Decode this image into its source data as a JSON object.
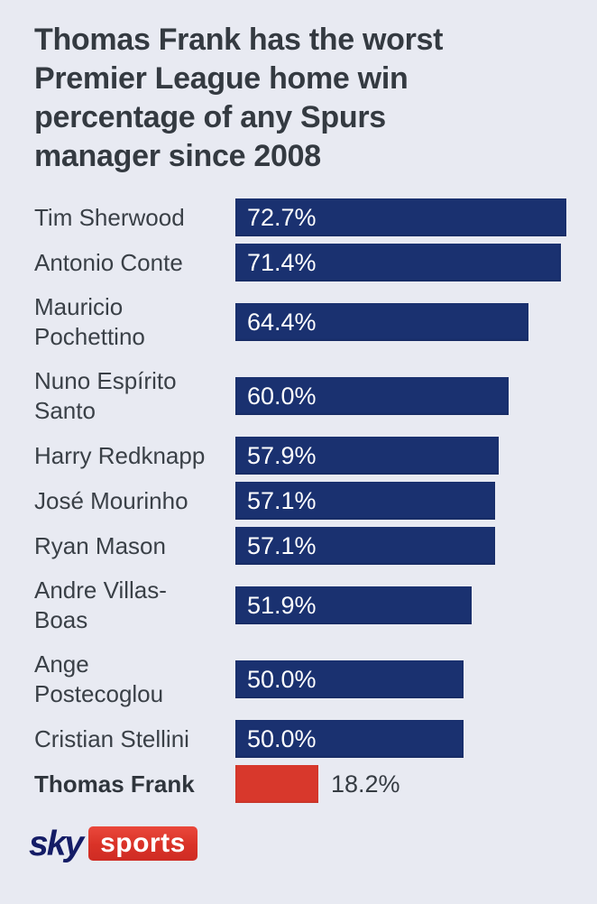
{
  "title": {
    "lines": [
      "Thomas Frank has the worst",
      "Premier League home win",
      "percentage of any Spurs",
      "manager since 2008"
    ]
  },
  "chart_data": {
    "type": "bar",
    "orientation": "horizontal",
    "title": "Thomas Frank has the worst Premier League home win percentage of any Spurs manager since 2008",
    "categories": [
      "Tim Sherwood",
      "Antonio Conte",
      "Mauricio Pochettino",
      "Nuno Espírito Santo",
      "Harry Redknapp",
      "José Mourinho",
      "Ryan Mason",
      "Andre Villas-Boas",
      "Ange Postecoglou",
      "Cristian Stellini",
      "Thomas Frank"
    ],
    "values": [
      72.7,
      71.4,
      64.4,
      60.0,
      57.9,
      57.1,
      57.1,
      51.9,
      50.0,
      50.0,
      18.2
    ],
    "value_labels": [
      "72.7%",
      "71.4%",
      "64.4%",
      "60.0%",
      "57.9%",
      "57.1%",
      "57.1%",
      "51.9%",
      "50.0%",
      "50.0%",
      "18.2%"
    ],
    "label_lines": [
      [
        "Tim Sherwood"
      ],
      [
        "Antonio Conte"
      ],
      [
        "Mauricio",
        "Pochettino"
      ],
      [
        "Nuno Espírito",
        "Santo"
      ],
      [
        "Harry Redknapp"
      ],
      [
        "José Mourinho"
      ],
      [
        "Ryan Mason"
      ],
      [
        "Andre Villas-",
        "Boas"
      ],
      [
        "Ange",
        "Postecoglou"
      ],
      [
        "Cristian Stellini"
      ],
      [
        "Thomas Frank"
      ]
    ],
    "highlight_index": 10,
    "highlight_category": "Thomas Frank",
    "xlabel": "",
    "ylabel": "",
    "xlim": [
      0,
      72.7
    ],
    "grid": false,
    "legend": "none",
    "bar_color": "#1a3170",
    "highlight_color": "#d8382c",
    "value_label_style": "inside-left white; highlighted bar value outside-right dark"
  },
  "footer": {
    "logo": {
      "sky": "sky",
      "sports": "sports"
    }
  },
  "colors": {
    "background": "#e8eaf2",
    "bar_navy": "#1a3170",
    "bar_red": "#d8382c",
    "text_dark": "#343a41",
    "bar_value_text": "#ffffff",
    "sky_logo_navy": "#141c66",
    "sports_badge_red": "#d93227"
  }
}
